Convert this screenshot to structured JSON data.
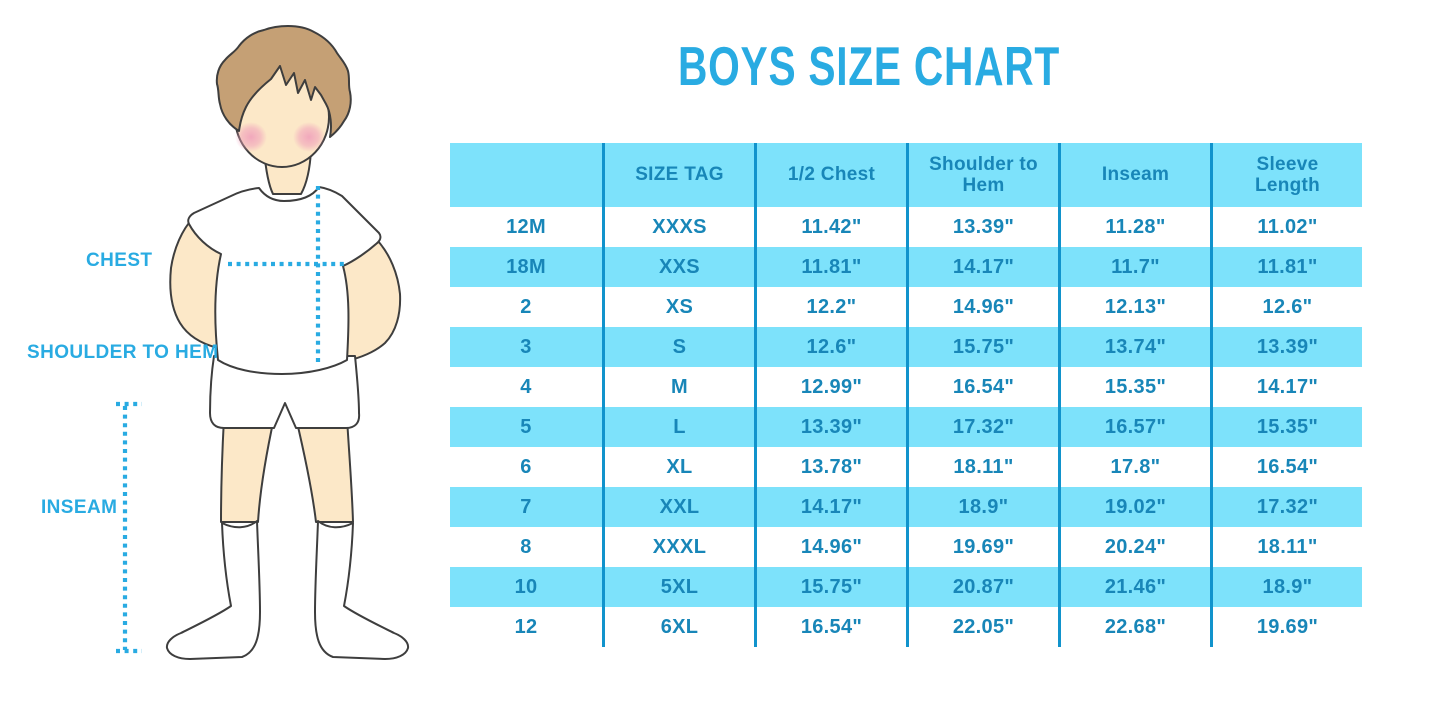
{
  "title": "BOYS SIZE CHART",
  "illustration": {
    "labels": {
      "chest": "CHEST",
      "shoulder_to_hem": "SHOULDER TO HEM",
      "inseam": "INSEAM"
    }
  },
  "chart_data": {
    "type": "table",
    "title": "BOYS SIZE CHART",
    "columns": [
      "",
      "SIZE TAG",
      "1/2 Chest",
      "Shoulder to Hem",
      "Inseam",
      "Sleeve Length"
    ],
    "rows": [
      [
        "12M",
        "XXXS",
        "11.42\"",
        "13.39\"",
        "11.28\"",
        "11.02\""
      ],
      [
        "18M",
        "XXS",
        "11.81\"",
        "14.17\"",
        "11.7\"",
        "11.81\""
      ],
      [
        "2",
        "XS",
        "12.2\"",
        "14.96\"",
        "12.13\"",
        "12.6\""
      ],
      [
        "3",
        "S",
        "12.6\"",
        "15.75\"",
        "13.74\"",
        "13.39\""
      ],
      [
        "4",
        "M",
        "12.99\"",
        "16.54\"",
        "15.35\"",
        "14.17\""
      ],
      [
        "5",
        "L",
        "13.39\"",
        "17.32\"",
        "16.57\"",
        "15.35\""
      ],
      [
        "6",
        "XL",
        "13.78\"",
        "18.11\"",
        "17.8\"",
        "16.54\""
      ],
      [
        "7",
        "XXL",
        "14.17\"",
        "18.9\"",
        "19.02\"",
        "17.32\""
      ],
      [
        "8",
        "XXXL",
        "14.96\"",
        "19.69\"",
        "20.24\"",
        "18.11\""
      ],
      [
        "10",
        "5XL",
        "15.75\"",
        "20.87\"",
        "21.46\"",
        "18.9\""
      ],
      [
        "12",
        "6XL",
        "16.54\"",
        "22.05\"",
        "22.68\"",
        "19.69\""
      ]
    ],
    "stripes": "header cyan, data rows alternate white/cyan starting white",
    "legend_position": "none",
    "grid": "vertical column separators only"
  },
  "colors": {
    "accent_blue": "#29ABE2",
    "table_text_blue": "#1886B8",
    "row_cyan": "#7DE2FB",
    "grid_line_blue": "#1193CC",
    "skin": "#FCE8C8",
    "hair_brown": "#C5A075",
    "blush_pink": "#F0A1BB",
    "outline": "#3E3E3E",
    "background": "#FFFFFF"
  }
}
